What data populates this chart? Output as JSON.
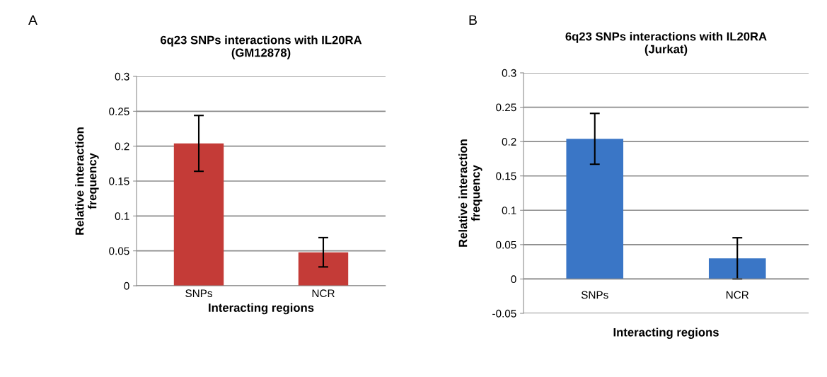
{
  "chart_data": [
    {
      "type": "bar",
      "title": "6q23 SNPs interactions with IL20RA\n(GM12878)",
      "xlabel": "Interacting regions",
      "ylabel": "Relative interaction\nfrequency",
      "annotations": [
        "A"
      ],
      "categories": [
        "SNPs",
        "NCR"
      ],
      "values": [
        0.204,
        0.048
      ],
      "errors": [
        0.04,
        0.021
      ],
      "color": "#c43b37",
      "ylim": [
        0,
        0.3
      ],
      "yticks": [
        0,
        0.05,
        0.1,
        0.15,
        0.2,
        0.25,
        0.3
      ],
      "grid": "y"
    },
    {
      "type": "bar",
      "title": "6q23 SNPs interactions with IL20RA\n(Jurkat)",
      "xlabel": "Interacting regions",
      "ylabel": "Relative interaction\nfrequency",
      "annotations": [
        "B"
      ],
      "categories": [
        "SNPs",
        "NCR"
      ],
      "values": [
        0.204,
        0.03
      ],
      "errors": [
        0.037,
        0.03
      ],
      "color": "#3a76c6",
      "ylim": [
        -0.05,
        0.3
      ],
      "yticks": [
        -0.05,
        0,
        0.05,
        0.1,
        0.15,
        0.2,
        0.25,
        0.3
      ],
      "grid": "y"
    }
  ]
}
